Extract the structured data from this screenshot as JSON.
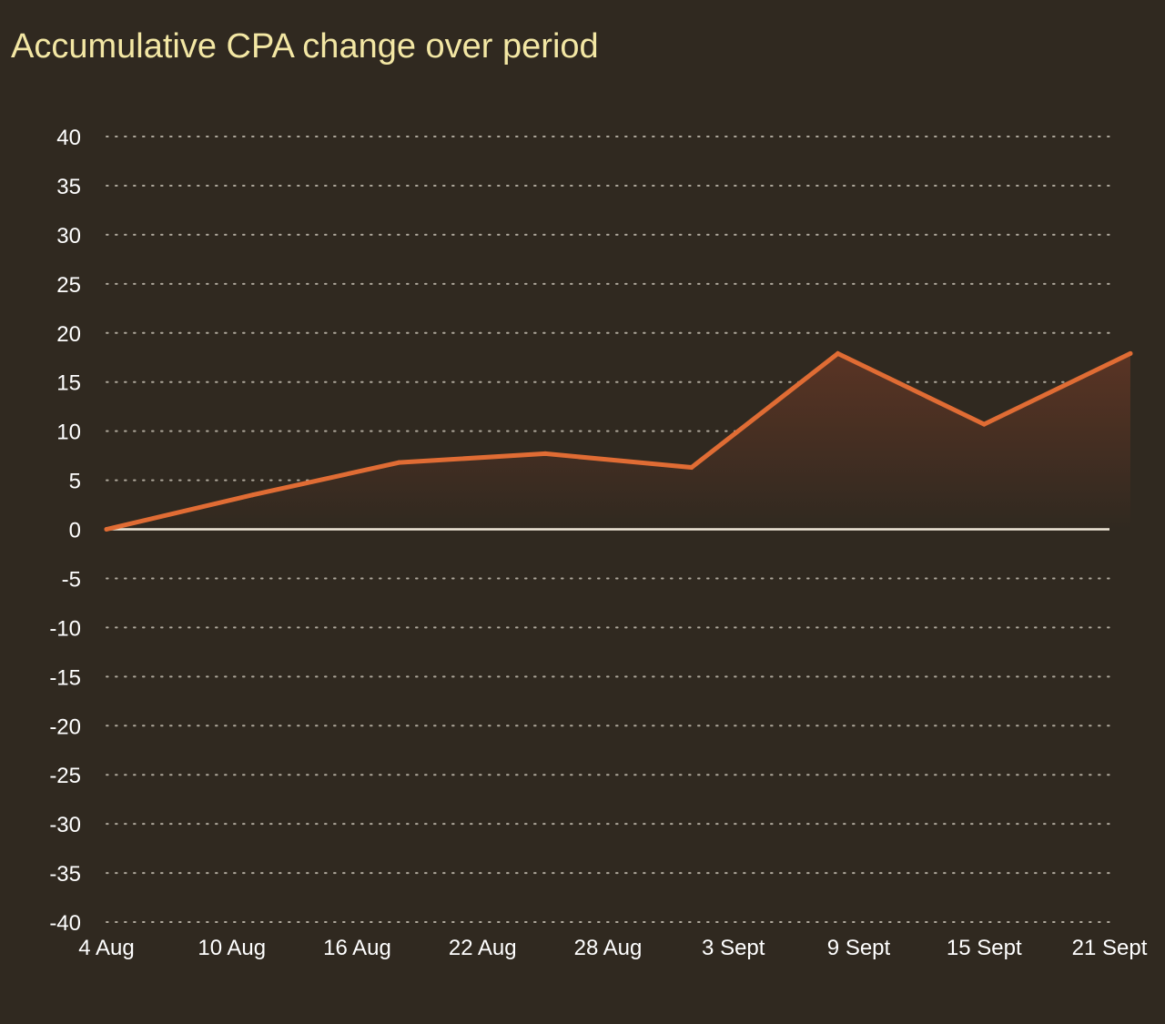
{
  "chart_data": {
    "type": "area",
    "title": "Accumulative CPA change over period",
    "xlabel": "",
    "ylabel": "",
    "categories": [
      "4 Aug",
      "10 Aug",
      "16 Aug",
      "22 Aug",
      "28 Aug",
      "3 Sept",
      "9 Sept",
      "15 Sept",
      "21 Sept"
    ],
    "series": [
      {
        "x": [
          "4 Aug",
          "11 Aug",
          "18 Aug",
          "25 Aug",
          "1 Sept",
          "8 Sept",
          "15 Sept",
          "22 Sept"
        ],
        "values": [
          0,
          3.5,
          6.8,
          7.7,
          6.3,
          17.9,
          10.7,
          17.9
        ],
        "color": "#e06c34"
      }
    ],
    "ylim": [
      -40,
      40
    ],
    "yticks": [
      "40",
      "35",
      "30",
      "25",
      "20",
      "15",
      "10",
      "5",
      "0",
      "-5",
      "-10",
      "-15",
      "-20",
      "-25",
      "-30",
      "-35",
      "-40"
    ],
    "grid": true,
    "zero_line": true,
    "legend": "none",
    "colors": {
      "background": "#302920",
      "title": "#f3e7a4",
      "tick_label": "#ffffff",
      "grid": "#d8d2c4",
      "zero_line": "#efe8d8",
      "line": "#e06c34",
      "area_top": "#5a3424",
      "area_bottom": "#302920"
    }
  }
}
